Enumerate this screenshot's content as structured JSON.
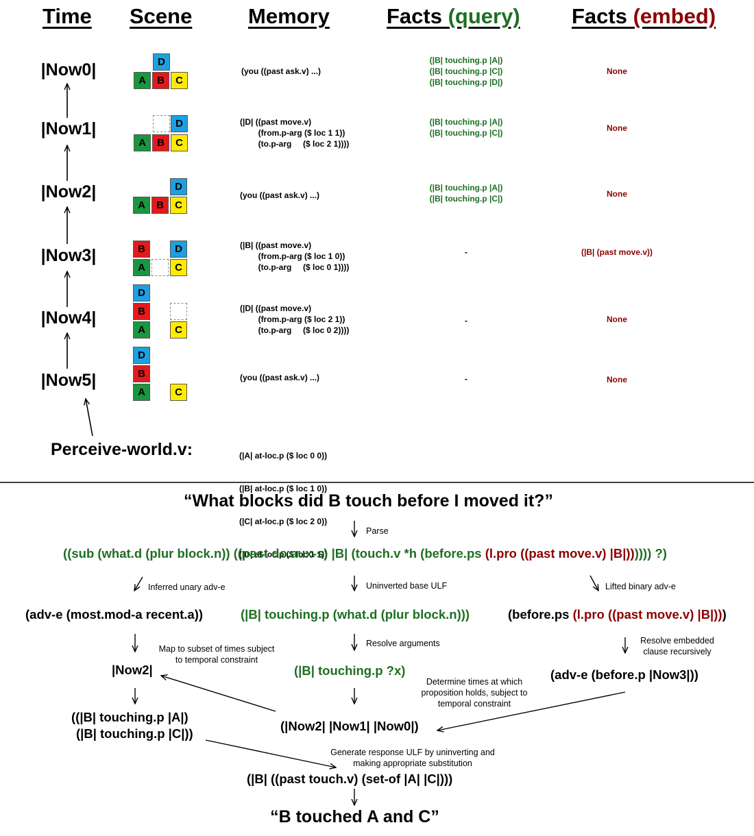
{
  "headers": {
    "time": "Time",
    "scene": "Scene",
    "memory": "Memory",
    "facts_query_prefix": "Facts ",
    "facts_query_suffix": "(query)",
    "facts_embed_prefix": "Facts ",
    "facts_embed_suffix": "(embed)"
  },
  "colors": {
    "green": "#1e6e23",
    "dark_red": "#8b0000",
    "block_A": "#1a9641",
    "block_B": "#e31a1c",
    "block_C": "#ffeb00",
    "block_D": "#1ea0e0"
  },
  "rows": [
    {
      "label": "|Now0|",
      "memory": "(you ((past ask.v) ...)",
      "facts_query": [
        "(|B| touching.p |A|)",
        "(|B| touching.p |C|)",
        "(|B| touching.p |D|)"
      ],
      "facts_embed": "None"
    },
    {
      "label": "|Now1|",
      "memory": "(|D| ((past move.v)\n        (from.p-arg ($ loc 1 1))\n        (to.p-arg     ($ loc 2 1))))",
      "facts_query": [
        "(|B| touching.p |A|)",
        "(|B| touching.p |C|)"
      ],
      "facts_embed": "None"
    },
    {
      "label": "|Now2|",
      "memory": "(you ((past ask.v) ...)",
      "facts_query": [
        "(|B| touching.p |A|)",
        "(|B| touching.p |C|)"
      ],
      "facts_embed": "None"
    },
    {
      "label": "|Now3|",
      "memory": "(|B| ((past move.v)\n        (from.p-arg ($ loc 1 0))\n        (to.p-arg     ($ loc 0 1))))",
      "facts_query": [
        "-"
      ],
      "facts_embed": "(|B| (past move.v))"
    },
    {
      "label": "|Now4|",
      "memory": "(|D| ((past move.v)\n        (from.p-arg ($ loc 2 1))\n        (to.p-arg     ($ loc 0 2))))",
      "facts_query": [
        "-"
      ],
      "facts_embed": "None"
    },
    {
      "label": "|Now5|",
      "memory": "(you ((past ask.v) ...)",
      "facts_query": [
        "-"
      ],
      "facts_embed": "None"
    }
  ],
  "perceive": {
    "label": "Perceive-world.v:",
    "facts": [
      "(|A| at-loc.p ($ loc 0 0))",
      "(|B| at-loc.p ($ loc 1 0))",
      "(|C| at-loc.p ($ loc 2 0))",
      "(|D| at-loc.p ($ loc 1 1))"
    ]
  },
  "pipeline": {
    "question": "“What blocks did B touch before I moved it?”",
    "parse_label": "Parse",
    "ulf_green": "((sub (what.d (plur block.n)) ((past do.aux-s) |B| (touch.v *h (before.ps ",
    "ulf_red": "(l.pro ((past move.v) |B|))",
    "ulf_tail": ")))) ?)",
    "inferred_label": "Inferred unary adv-e",
    "uninverted_label": "Uninverted base ULF",
    "lifted_label": "Lifted binary adv-e",
    "adv_recent": "(adv-e (most.mod-a recent.a))",
    "base_ulf": "(|B| touching.p (what.d (plur block.n)))",
    "before_prefix": "(before.ps ",
    "before_red": "(l.pro ((past move.v) |B|))",
    "before_tail": ")",
    "map_label": "Map to subset of times subject\nto temporal constraint",
    "resolve_args_label": "Resolve arguments",
    "resolve_embedded_label": "Resolve embedded\nclause recursively",
    "now2": "|Now2|",
    "touching_x": "(|B| touching.p ?x)",
    "adv_before_now3": "(adv-e (before.p |Now3|))",
    "determine_label": "Determine times at which\nproposition holds, subject to\ntemporal constraint",
    "result_facts": [
      "((|B| touching.p |A|)",
      "(|B| touching.p |C|))"
    ],
    "times_list": "(|Now2| |Now1| |Now0|)",
    "generate_label": "Generate response ULF by uninverting and\nmaking appropriate substitution",
    "response_ulf": "(|B| ((past touch.v) (set-of |A| |C|)))",
    "answer": "“B touched A and C”"
  }
}
